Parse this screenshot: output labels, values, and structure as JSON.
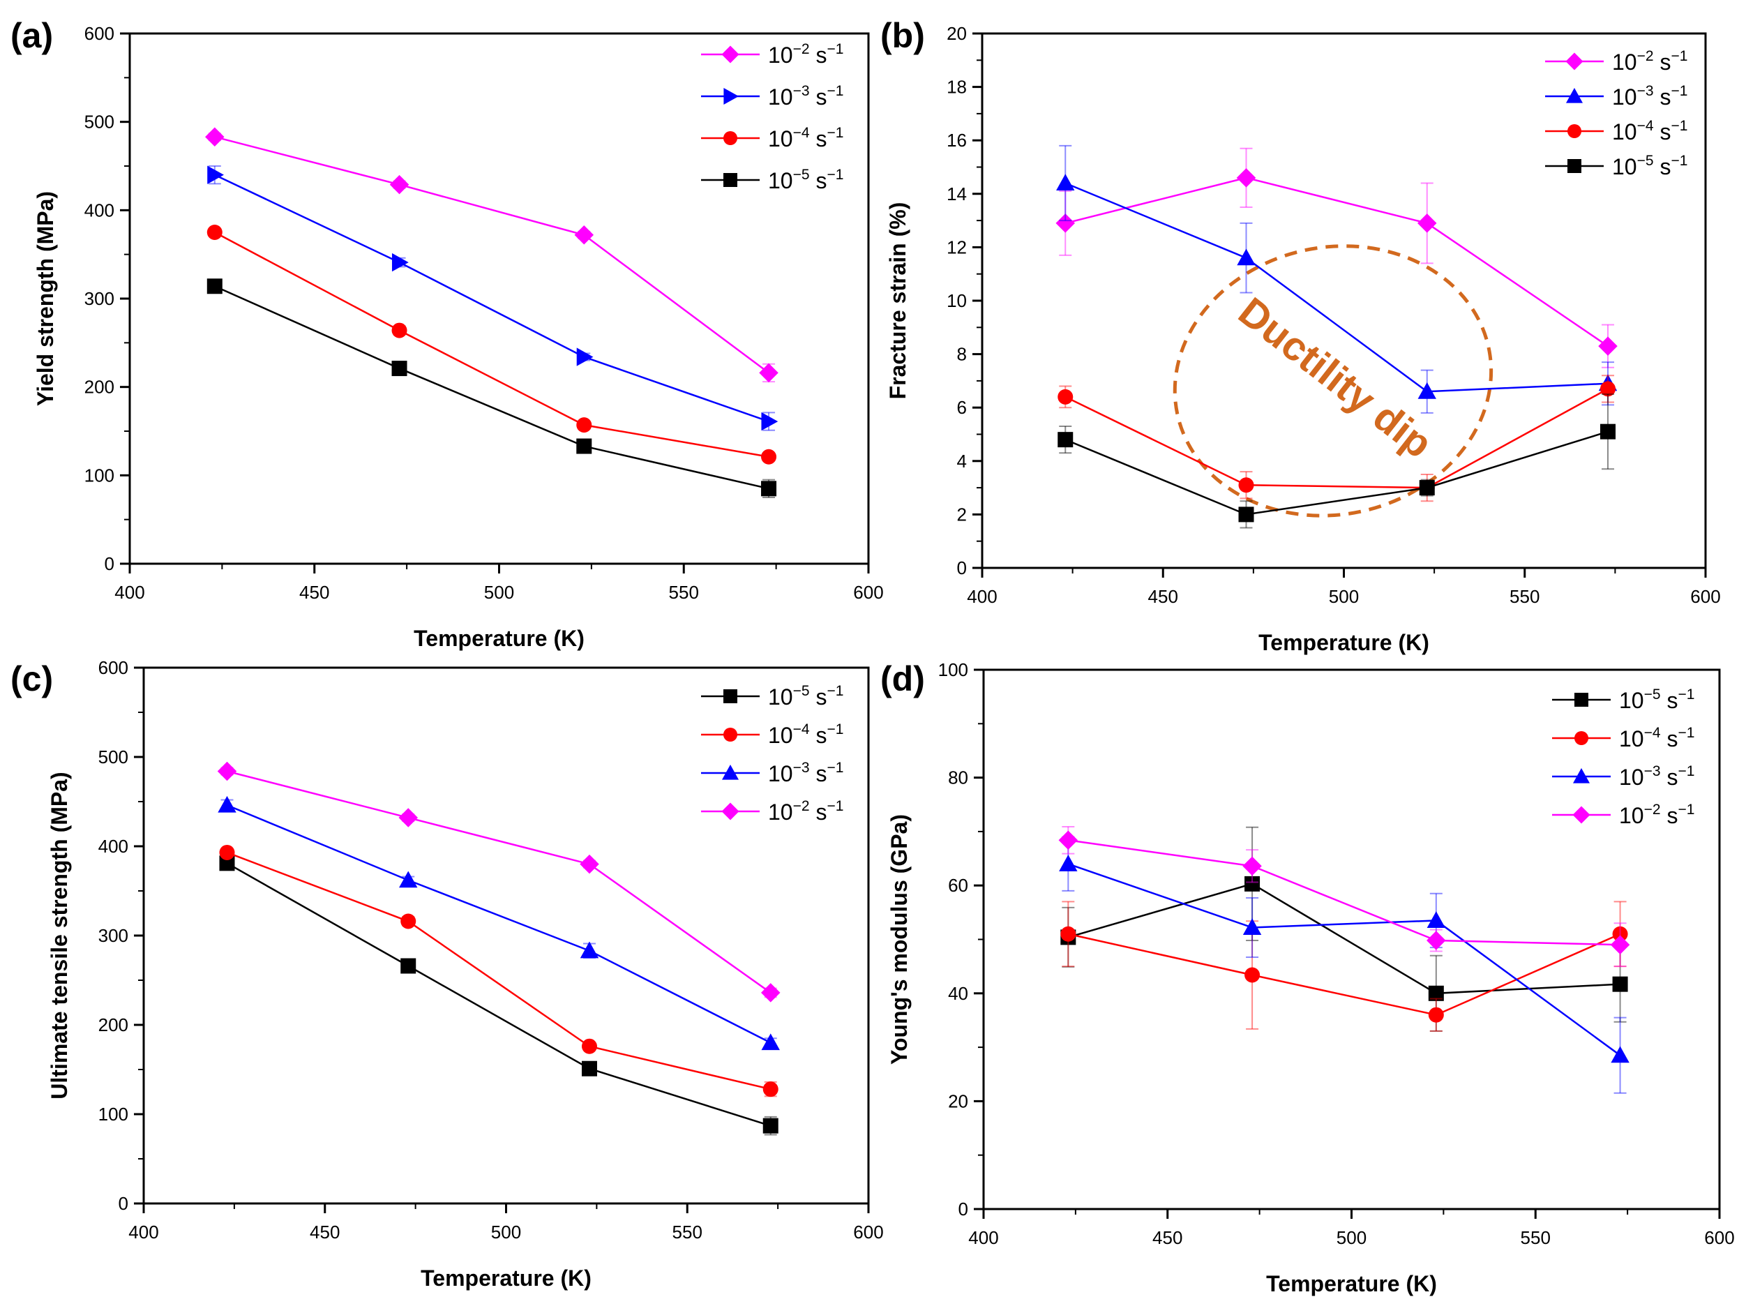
{
  "figure": {
    "colors": {
      "m2": "#ff00ff",
      "m3": "#0000ff",
      "m4": "#ff0000",
      "m5": "#000000",
      "annotation": "#d2691e"
    }
  },
  "chart_data": [
    {
      "type": "line",
      "panel": "(a)",
      "xlabel": "Temperature (K)",
      "ylabel": "Yield strength (MPa)",
      "xlim": [
        400,
        600
      ],
      "ylim": [
        0,
        600
      ],
      "xticks": [
        400,
        450,
        500,
        550,
        600
      ],
      "yticks": [
        0,
        100,
        200,
        300,
        400,
        500,
        600
      ],
      "x": [
        423,
        473,
        523,
        573
      ],
      "legend_position": "top-right",
      "series": [
        {
          "base": "10",
          "exp": "−2",
          "unit": "s",
          "unit_exp": "−1",
          "color": "#ff00ff",
          "marker": "diamond",
          "values": [
            483,
            429,
            372,
            216
          ],
          "err": [
            4,
            4,
            4,
            10
          ]
        },
        {
          "base": "10",
          "exp": "−3",
          "unit": "s",
          "unit_exp": "−1",
          "color": "#0000ff",
          "marker": "triangle-right",
          "values": [
            440,
            341,
            234,
            161
          ],
          "err": [
            10,
            5,
            4,
            10
          ]
        },
        {
          "base": "10",
          "exp": "−4",
          "unit": "s",
          "unit_exp": "−1",
          "color": "#ff0000",
          "marker": "circle",
          "values": [
            375,
            264,
            157,
            121
          ],
          "err": [
            4,
            5,
            4,
            4
          ]
        },
        {
          "base": "10",
          "exp": "−5",
          "unit": "s",
          "unit_exp": "−1",
          "color": "#000000",
          "marker": "square",
          "values": [
            314,
            221,
            133,
            85
          ],
          "err": [
            4,
            4,
            5,
            10
          ]
        }
      ]
    },
    {
      "type": "line",
      "panel": "(b)",
      "xlabel": "Temperature (K)",
      "ylabel": "Fracture strain (%)",
      "xlim": [
        400,
        600
      ],
      "ylim": [
        0,
        20
      ],
      "xticks": [
        400,
        450,
        500,
        550,
        600
      ],
      "yticks": [
        0,
        2,
        4,
        6,
        8,
        10,
        12,
        14,
        16,
        18,
        20
      ],
      "x": [
        423,
        473,
        523,
        573
      ],
      "legend_position": "top-right",
      "annotation": {
        "text": "Ductility dip",
        "cx": 497,
        "cy": 7,
        "rx": 44,
        "ry": 5
      },
      "series": [
        {
          "base": "10",
          "exp": "−2",
          "unit": "s",
          "unit_exp": "−1",
          "color": "#ff00ff",
          "marker": "diamond",
          "values": [
            12.9,
            14.6,
            12.9,
            8.3
          ],
          "err": [
            1.2,
            1.1,
            1.5,
            0.8
          ]
        },
        {
          "base": "10",
          "exp": "−3",
          "unit": "s",
          "unit_exp": "−1",
          "color": "#0000ff",
          "marker": "triangle",
          "values": [
            14.4,
            11.6,
            6.6,
            6.9
          ],
          "err": [
            1.4,
            1.3,
            0.8,
            0.8
          ]
        },
        {
          "base": "10",
          "exp": "−4",
          "unit": "s",
          "unit_exp": "−1",
          "color": "#ff0000",
          "marker": "circle",
          "values": [
            6.4,
            3.1,
            3.0,
            6.7
          ],
          "err": [
            0.4,
            0.5,
            0.5,
            0.5
          ]
        },
        {
          "base": "10",
          "exp": "−5",
          "unit": "s",
          "unit_exp": "−1",
          "color": "#000000",
          "marker": "square",
          "values": [
            4.8,
            2.0,
            3.0,
            5.1
          ],
          "err": [
            0.5,
            0.5,
            0.3,
            1.4
          ]
        }
      ]
    },
    {
      "type": "line",
      "panel": "(c)",
      "xlabel": "Temperature (K)",
      "ylabel": "Ultimate tensile strength (MPa)",
      "xlim": [
        400,
        600
      ],
      "ylim": [
        0,
        600
      ],
      "xticks": [
        400,
        450,
        500,
        550,
        600
      ],
      "yticks": [
        0,
        100,
        200,
        300,
        400,
        500,
        600
      ],
      "x": [
        423,
        473,
        523,
        573
      ],
      "legend_position": "top-right",
      "series": [
        {
          "base": "10",
          "exp": "−5",
          "unit": "s",
          "unit_exp": "−1",
          "color": "#000000",
          "marker": "square",
          "values": [
            381,
            266,
            151,
            87
          ],
          "err": [
            4,
            5,
            4,
            10
          ]
        },
        {
          "base": "10",
          "exp": "−4",
          "unit": "s",
          "unit_exp": "−1",
          "color": "#ff0000",
          "marker": "circle",
          "values": [
            393,
            316,
            176,
            128
          ],
          "err": [
            4,
            5,
            4,
            8
          ]
        },
        {
          "base": "10",
          "exp": "−3",
          "unit": "s",
          "unit_exp": "−1",
          "color": "#0000ff",
          "marker": "triangle",
          "values": [
            446,
            362,
            283,
            180
          ],
          "err": [
            6,
            4,
            8,
            5
          ]
        },
        {
          "base": "10",
          "exp": "−2",
          "unit": "s",
          "unit_exp": "−1",
          "color": "#ff00ff",
          "marker": "diamond",
          "values": [
            484,
            432,
            380,
            236
          ],
          "err": [
            4,
            4,
            4,
            5
          ]
        }
      ]
    },
    {
      "type": "line",
      "panel": "(d)",
      "xlabel": "Temperature (K)",
      "ylabel": "Young's modulus (GPa)",
      "xlim": [
        400,
        600
      ],
      "ylim": [
        0,
        100
      ],
      "xticks": [
        400,
        450,
        500,
        550,
        600
      ],
      "yticks": [
        0,
        20,
        40,
        60,
        80,
        100
      ],
      "x": [
        423,
        473,
        523,
        573
      ],
      "legend_position": "top-right",
      "series": [
        {
          "base": "10",
          "exp": "−5",
          "unit": "s",
          "unit_exp": "−1",
          "color": "#000000",
          "marker": "square",
          "values": [
            50.4,
            60.3,
            40.0,
            41.7
          ],
          "err": [
            5.5,
            10.5,
            7.0,
            7.0
          ]
        },
        {
          "base": "10",
          "exp": "−4",
          "unit": "s",
          "unit_exp": "−1",
          "color": "#ff0000",
          "marker": "circle",
          "values": [
            51.0,
            43.4,
            36.0,
            51.0
          ],
          "err": [
            6.0,
            10.0,
            3.0,
            6.0
          ]
        },
        {
          "base": "10",
          "exp": "−3",
          "unit": "s",
          "unit_exp": "−1",
          "color": "#0000ff",
          "marker": "triangle",
          "values": [
            64.0,
            52.2,
            53.5,
            28.5
          ],
          "err": [
            5.0,
            5.5,
            5.0,
            7.0
          ]
        },
        {
          "base": "10",
          "exp": "−2",
          "unit": "s",
          "unit_exp": "−1",
          "color": "#ff00ff",
          "marker": "diamond",
          "values": [
            68.4,
            63.6,
            49.8,
            49.0
          ],
          "err": [
            2.5,
            3.0,
            2.0,
            4.0
          ]
        }
      ]
    }
  ]
}
